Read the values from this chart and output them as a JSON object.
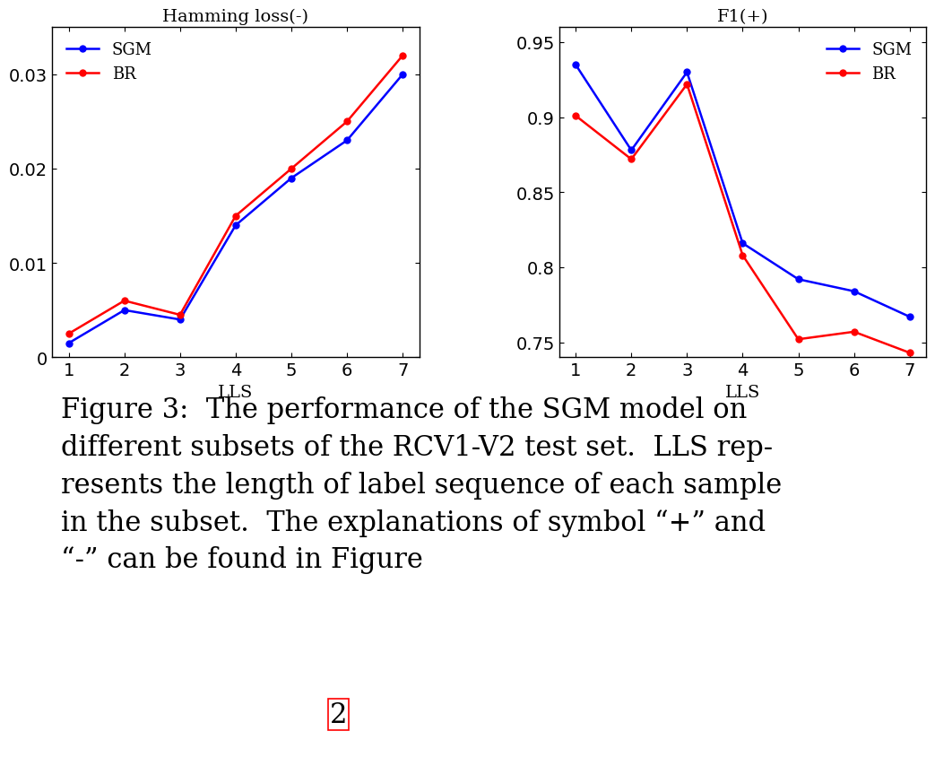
{
  "x": [
    1,
    2,
    3,
    4,
    5,
    6,
    7
  ],
  "hamming_sgm": [
    0.0015,
    0.005,
    0.004,
    0.014,
    0.019,
    0.023,
    0.03
  ],
  "hamming_br": [
    0.0025,
    0.006,
    0.0045,
    0.015,
    0.02,
    0.025,
    0.032
  ],
  "f1_sgm": [
    0.935,
    0.878,
    0.93,
    0.816,
    0.792,
    0.784,
    0.767
  ],
  "f1_br": [
    0.901,
    0.872,
    0.922,
    0.808,
    0.752,
    0.757,
    0.743
  ],
  "hamming_title": "Hamming loss(-)",
  "f1_title": "F1(+)",
  "xlabel": "LLS",
  "sgm_label": "SGM",
  "br_label": "BR",
  "sgm_color": "#0000FF",
  "br_color": "#FF0000",
  "hamming_ylim": [
    0,
    0.035
  ],
  "hamming_yticks": [
    0,
    0.01,
    0.02,
    0.03
  ],
  "f1_ylim": [
    0.74,
    0.96
  ],
  "f1_yticks": [
    0.75,
    0.8,
    0.85,
    0.9,
    0.95
  ],
  "xlim": [
    0.7,
    7.3
  ],
  "xticks": [
    1,
    2,
    3,
    4,
    5,
    6,
    7
  ],
  "caption_line1": "Figure 3:  The performance of the SGM model on",
  "caption_line2": "different subsets of the RCV1-V2 test set.  LLS rep-",
  "caption_line3": "resents the length of label sequence of each sample",
  "caption_line4": "in the subset.  The explanations of symbol “+” and",
  "caption_line5": "“-” can be found in Figure",
  "caption_number": "2",
  "marker": "o",
  "linewidth": 1.8,
  "markersize": 5,
  "bg_color": "#ffffff",
  "tick_fontsize": 14,
  "label_fontsize": 14,
  "title_fontsize": 14,
  "legend_fontsize": 13,
  "caption_fontsize": 22
}
